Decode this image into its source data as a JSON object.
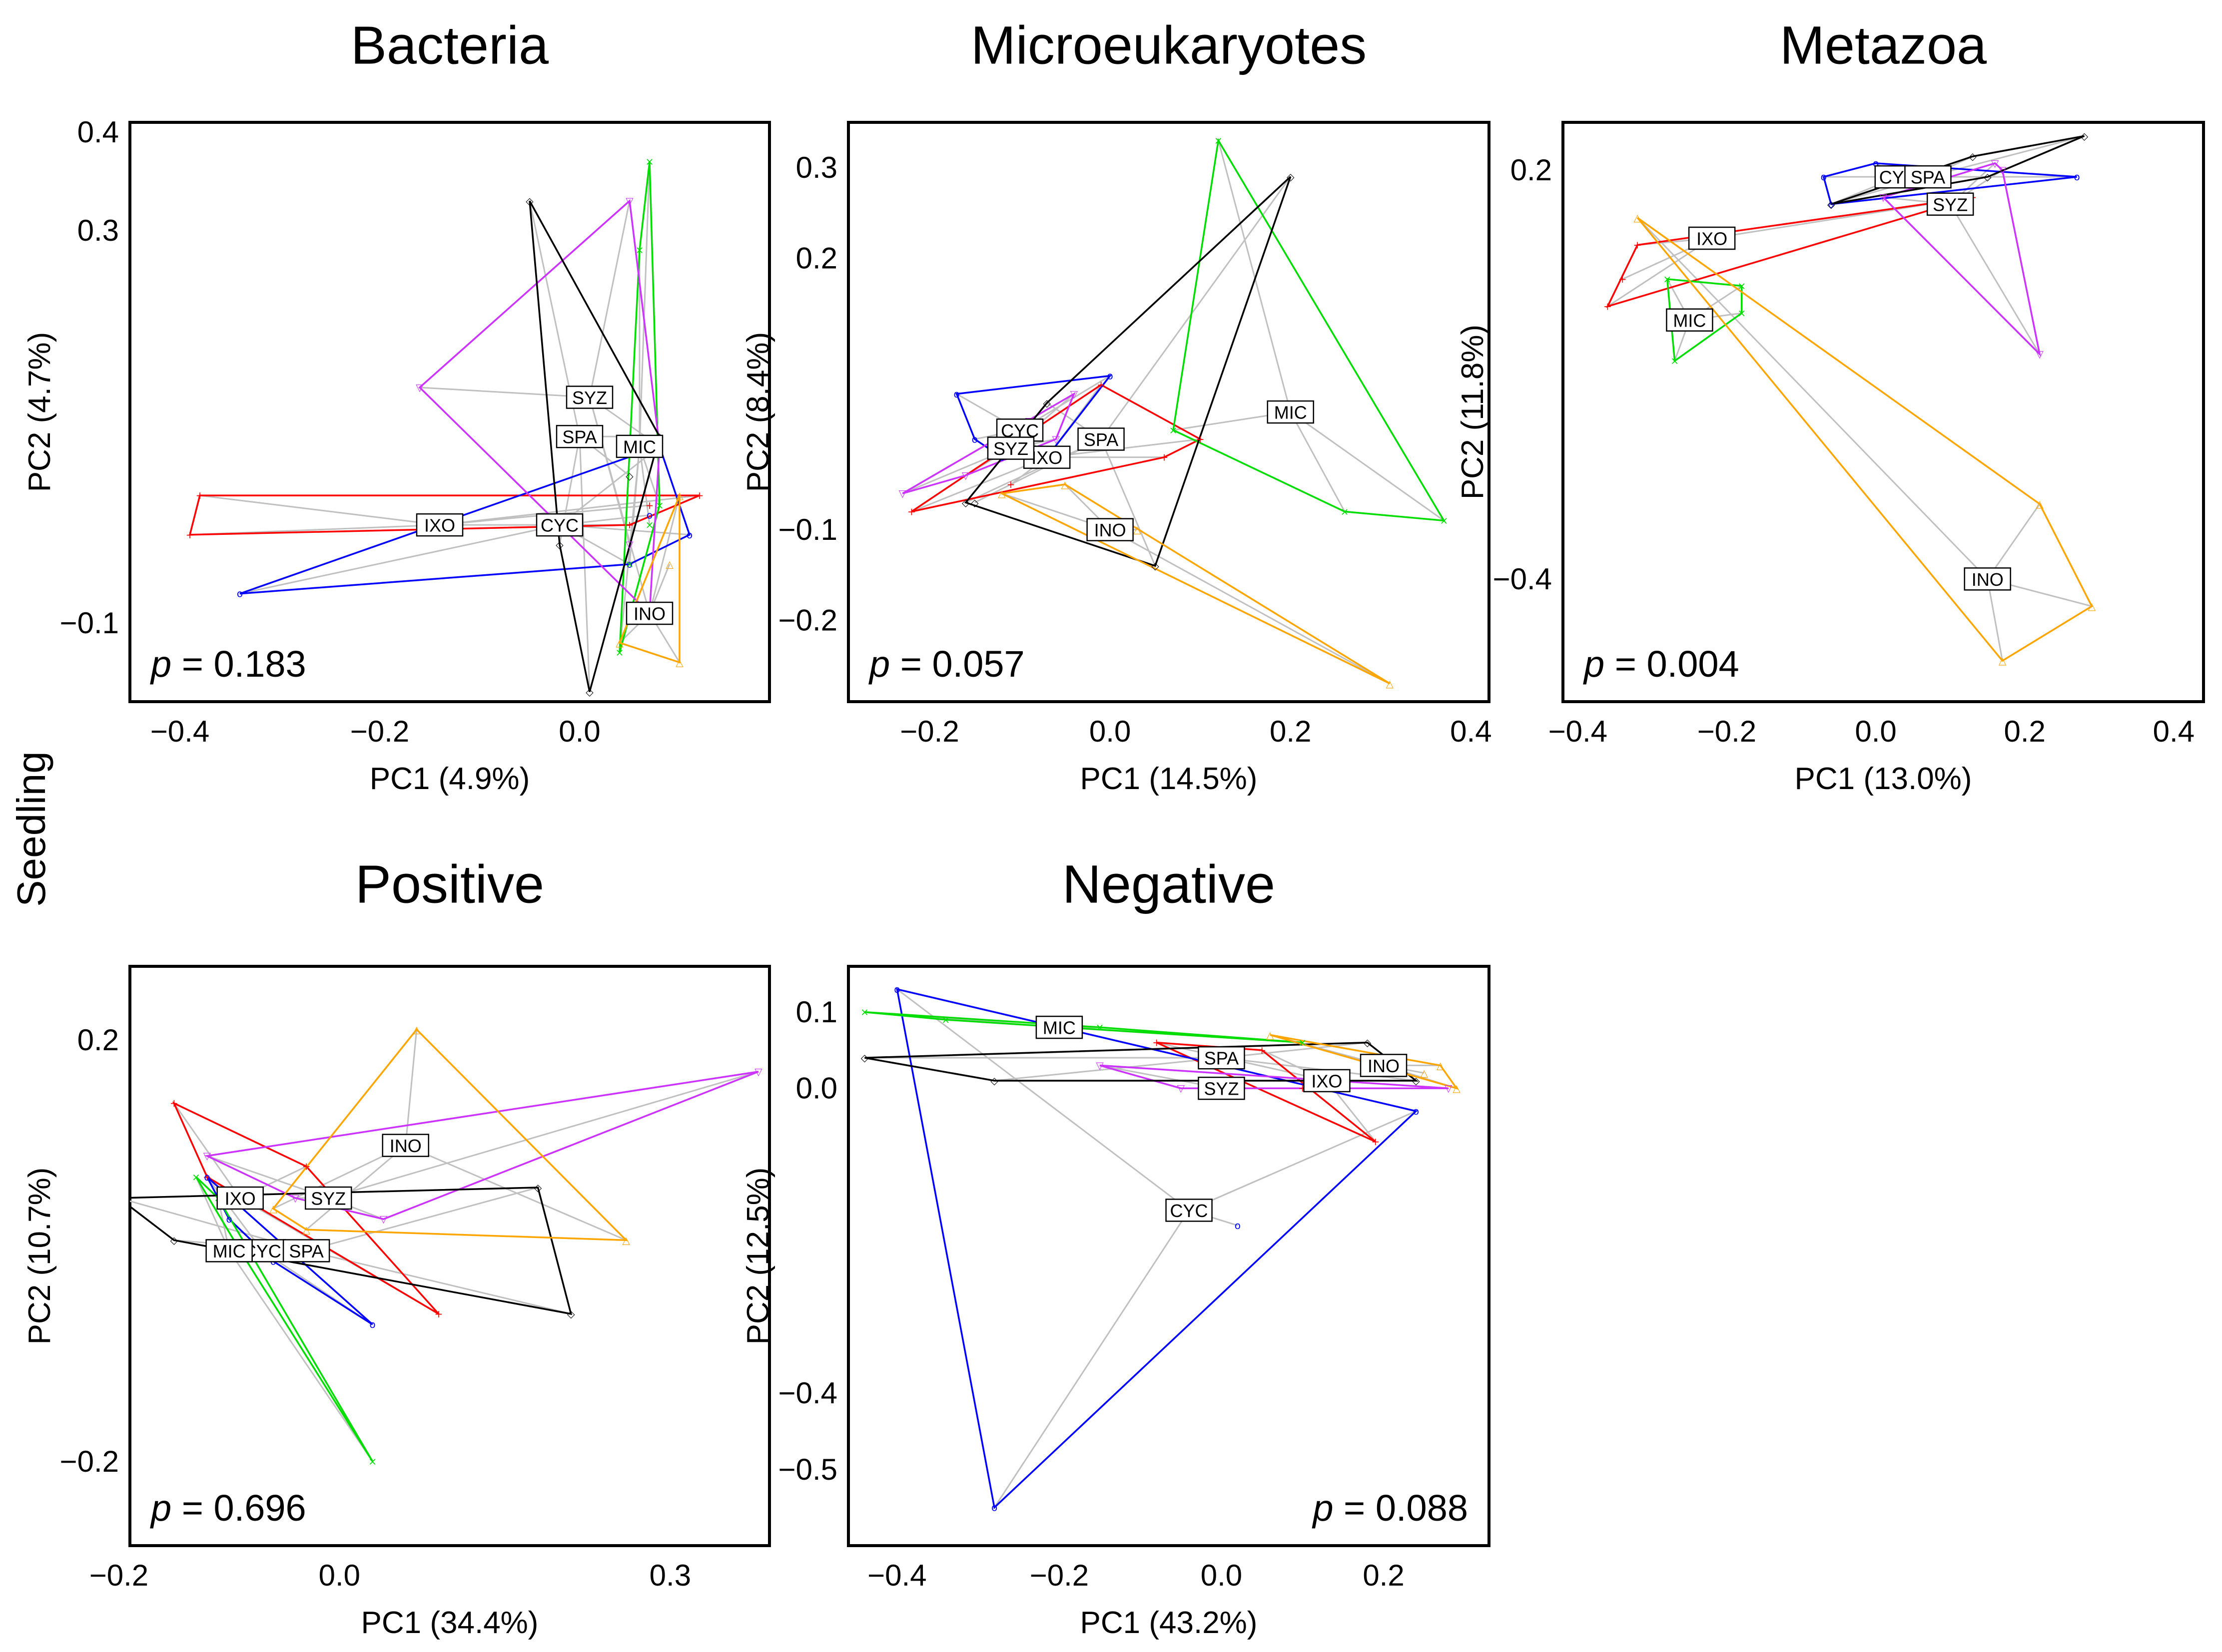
{
  "row_label": "Seedling",
  "colors": {
    "IXO": "#ff0000",
    "CYC": "#0000ff",
    "MIC": "#00dd00",
    "SYZ": "#cc33ff",
    "SPA": "#000000",
    "INO": "#ffa500",
    "spider": "#c0c0c0"
  },
  "chart_data": [
    {
      "type": "scatter",
      "title": "Bacteria",
      "xlabel": "PC1 (4.9%)",
      "ylabel": "PC2 (4.7%)",
      "p_label": "p",
      "p_value": "= 0.183",
      "p_position": "bottom-left",
      "xlim": [
        -0.45,
        0.19
      ],
      "ylim": [
        -0.18,
        0.41
      ],
      "xticks": [
        -0.4,
        -0.2,
        0.0
      ],
      "xtick_labels": [
        "−0.4",
        "−0.2",
        "0.0"
      ],
      "yticks": [
        0.4,
        0.3,
        -0.1
      ],
      "ytick_labels": [
        "0.4",
        "0.3",
        "−0.1"
      ],
      "groups": [
        {
          "name": "IXO",
          "label": "IXO",
          "centroid": [
            -0.14,
            0.0
          ],
          "points": [
            [
              -0.38,
              0.03
            ],
            [
              0.12,
              0.03
            ],
            [
              -0.39,
              -0.01
            ],
            [
              0.07,
              0.02
            ],
            [
              0.05,
              0.0
            ]
          ]
        },
        {
          "name": "CYC",
          "label": "CYC",
          "centroid": [
            -0.02,
            0.0
          ],
          "points": [
            [
              -0.34,
              -0.07
            ],
            [
              0.11,
              -0.01
            ],
            [
              0.08,
              0.08
            ],
            [
              0.07,
              0.01
            ],
            [
              0.05,
              -0.04
            ]
          ]
        },
        {
          "name": "MIC",
          "label": "MIC",
          "centroid": [
            0.06,
            0.08
          ],
          "points": [
            [
              0.07,
              0.37
            ],
            [
              0.06,
              0.28
            ],
            [
              0.05,
              -0.04
            ],
            [
              0.04,
              -0.13
            ],
            [
              0.07,
              0.0
            ],
            [
              0.08,
              0.02
            ]
          ]
        },
        {
          "name": "SYZ",
          "label": "SYZ",
          "centroid": [
            0.01,
            0.13
          ],
          "points": [
            [
              0.05,
              0.33
            ],
            [
              -0.16,
              0.14
            ],
            [
              0.08,
              0.08
            ],
            [
              0.07,
              -0.09
            ],
            [
              0.05,
              -0.02
            ]
          ]
        },
        {
          "name": "SPA",
          "label": "SPA",
          "centroid": [
            0.0,
            0.09
          ],
          "points": [
            [
              -0.05,
              0.33
            ],
            [
              0.08,
              0.09
            ],
            [
              0.01,
              -0.17
            ],
            [
              -0.02,
              -0.02
            ],
            [
              0.05,
              0.05
            ]
          ]
        },
        {
          "name": "INO",
          "label": "INO",
          "centroid": [
            0.07,
            -0.09
          ],
          "points": [
            [
              0.1,
              0.03
            ],
            [
              0.1,
              -0.14
            ],
            [
              0.04,
              -0.12
            ],
            [
              0.09,
              -0.04
            ]
          ]
        }
      ]
    },
    {
      "type": "scatter",
      "title": "Microeukaryotes",
      "xlabel": "PC1 (14.5%)",
      "ylabel": "PC2 (8.4%)",
      "p_label": "p",
      "p_value": "= 0.057",
      "p_position": "bottom-left",
      "xlim": [
        -0.29,
        0.42
      ],
      "ylim": [
        -0.29,
        0.35
      ],
      "xticks": [
        -0.2,
        0.0,
        0.2,
        0.4
      ],
      "xtick_labels": [
        "−0.2",
        "0.0",
        "0.2",
        "0.4"
      ],
      "yticks": [
        0.3,
        0.2,
        -0.1,
        -0.2
      ],
      "ytick_labels": [
        "0.3",
        "0.2",
        "−0.1",
        "−0.2"
      ],
      "groups": [
        {
          "name": "IXO",
          "label": "IXO",
          "centroid": [
            -0.07,
            -0.02
          ],
          "points": [
            [
              -0.22,
              -0.08
            ],
            [
              0.1,
              0.0
            ],
            [
              -0.01,
              0.06
            ],
            [
              -0.11,
              -0.05
            ],
            [
              0.06,
              -0.02
            ]
          ]
        },
        {
          "name": "CYC",
          "label": "CYC",
          "centroid": [
            -0.1,
            0.01
          ],
          "points": [
            [
              -0.17,
              0.05
            ],
            [
              0.0,
              0.07
            ],
            [
              -0.07,
              -0.02
            ],
            [
              -0.12,
              -0.02
            ],
            [
              -0.15,
              0.0
            ]
          ]
        },
        {
          "name": "MIC",
          "label": "MIC",
          "centroid": [
            0.2,
            0.03
          ],
          "points": [
            [
              0.12,
              0.33
            ],
            [
              0.07,
              0.01
            ],
            [
              0.26,
              -0.08
            ],
            [
              0.37,
              -0.09
            ]
          ]
        },
        {
          "name": "SYZ",
          "label": "SYZ",
          "centroid": [
            -0.11,
            -0.01
          ],
          "points": [
            [
              -0.23,
              -0.06
            ],
            [
              -0.04,
              0.05
            ],
            [
              -0.06,
              0.0
            ],
            [
              -0.16,
              -0.04
            ],
            [
              -0.09,
              0.02
            ]
          ]
        },
        {
          "name": "SPA",
          "label": "SPA",
          "centroid": [
            -0.01,
            0.0
          ],
          "points": [
            [
              -0.16,
              -0.07
            ],
            [
              0.2,
              0.29
            ],
            [
              0.05,
              -0.14
            ],
            [
              -0.07,
              0.04
            ],
            [
              -0.15,
              -0.07
            ]
          ]
        },
        {
          "name": "INO",
          "label": "INO",
          "centroid": [
            0.0,
            -0.1
          ],
          "points": [
            [
              -0.05,
              -0.05
            ],
            [
              0.31,
              -0.27
            ],
            [
              -0.12,
              -0.06
            ],
            [
              0.03,
              -0.1
            ]
          ]
        }
      ]
    },
    {
      "type": "scatter",
      "title": "Metazoa",
      "xlabel": "PC1 (13.0%)",
      "ylabel": "PC2 (11.8%)",
      "p_label": "p",
      "p_value": "= 0.004",
      "p_position": "bottom-left",
      "xlim": [
        -0.42,
        0.44
      ],
      "ylim": [
        -0.58,
        0.27
      ],
      "xticks": [
        -0.4,
        -0.2,
        0.0,
        0.2,
        0.4
      ],
      "xtick_labels": [
        "−0.4",
        "−0.2",
        "0.0",
        "0.2",
        "0.4"
      ],
      "yticks": [
        0.2,
        -0.4
      ],
      "ytick_labels": [
        "0.2",
        "−0.4"
      ],
      "groups": [
        {
          "name": "IXO",
          "label": "IXO",
          "centroid": [
            -0.22,
            0.1
          ],
          "points": [
            [
              -0.36,
              0.0
            ],
            [
              0.13,
              0.16
            ],
            [
              -0.32,
              0.09
            ],
            [
              -0.34,
              0.04
            ]
          ]
        },
        {
          "name": "CYC",
          "label": "CYC",
          "centroid": [
            0.03,
            0.19
          ],
          "points": [
            [
              -0.07,
              0.19
            ],
            [
              0.0,
              0.21
            ],
            [
              0.27,
              0.19
            ],
            [
              -0.06,
              0.15
            ]
          ]
        },
        {
          "name": "MIC",
          "label": "MIC",
          "centroid": [
            -0.25,
            -0.02
          ],
          "points": [
            [
              -0.28,
              0.04
            ],
            [
              -0.18,
              0.03
            ],
            [
              -0.18,
              -0.01
            ],
            [
              -0.27,
              -0.08
            ]
          ]
        },
        {
          "name": "SYZ",
          "label": "SYZ",
          "centroid": [
            0.1,
            0.15
          ],
          "points": [
            [
              0.16,
              0.21
            ],
            [
              0.01,
              0.16
            ],
            [
              0.22,
              -0.07
            ],
            [
              0.17,
              0.2
            ]
          ]
        },
        {
          "name": "SPA",
          "label": "SPA",
          "centroid": [
            0.07,
            0.19
          ],
          "points": [
            [
              0.13,
              0.22
            ],
            [
              0.28,
              0.25
            ],
            [
              -0.06,
              0.15
            ],
            [
              0.15,
              0.19
            ]
          ]
        },
        {
          "name": "INO",
          "label": "INO",
          "centroid": [
            0.15,
            -0.4
          ],
          "points": [
            [
              -0.32,
              0.13
            ],
            [
              0.22,
              -0.29
            ],
            [
              0.29,
              -0.44
            ],
            [
              0.17,
              -0.52
            ]
          ]
        }
      ]
    },
    {
      "type": "scatter",
      "title": "Positive",
      "xlabel": "PC1 (34.4%)",
      "ylabel": "PC2 (10.7%)",
      "p_label": "p",
      "p_value": "= 0.696",
      "p_position": "bottom-left",
      "xlim": [
        -0.19,
        0.39
      ],
      "ylim": [
        -0.28,
        0.27
      ],
      "xticks": [
        -0.2,
        0.0,
        0.3
      ],
      "xtick_labels": [
        "−0.2",
        "0.0",
        "0.3"
      ],
      "yticks": [
        0.2,
        -0.2
      ],
      "ytick_labels": [
        "0.2",
        "−0.2"
      ],
      "groups": [
        {
          "name": "IXO",
          "label": "IXO",
          "centroid": [
            -0.09,
            0.05
          ],
          "points": [
            [
              -0.15,
              0.14
            ],
            [
              -0.03,
              0.08
            ],
            [
              0.09,
              -0.06
            ],
            [
              -0.12,
              0.07
            ]
          ]
        },
        {
          "name": "CYC",
          "label": "CYC",
          "centroid": [
            -0.07,
            0.0
          ],
          "points": [
            [
              -0.12,
              0.07
            ],
            [
              0.03,
              -0.07
            ],
            [
              -0.1,
              0.03
            ],
            [
              -0.06,
              -0.01
            ]
          ]
        },
        {
          "name": "MIC",
          "label": "MIC",
          "centroid": [
            -0.1,
            0.0
          ],
          "points": [
            [
              -0.13,
              0.07
            ],
            [
              0.03,
              -0.2
            ],
            [
              -0.09,
              0.0
            ],
            [
              -0.11,
              0.05
            ]
          ]
        },
        {
          "name": "SYZ",
          "label": "SYZ",
          "centroid": [
            -0.01,
            0.05
          ],
          "points": [
            [
              -0.12,
              0.09
            ],
            [
              0.38,
              0.17
            ],
            [
              0.04,
              0.03
            ],
            [
              -0.04,
              0.05
            ]
          ]
        },
        {
          "name": "SPA",
          "label": "SPA",
          "centroid": [
            -0.03,
            0.0
          ],
          "points": [
            [
              -0.2,
              0.05
            ],
            [
              0.18,
              0.06
            ],
            [
              0.21,
              -0.06
            ],
            [
              -0.15,
              0.01
            ]
          ]
        },
        {
          "name": "INO",
          "label": "INO",
          "centroid": [
            0.06,
            0.1
          ],
          "points": [
            [
              0.07,
              0.21
            ],
            [
              0.26,
              0.01
            ],
            [
              -0.06,
              0.04
            ],
            [
              -0.03,
              0.02
            ]
          ]
        }
      ]
    },
    {
      "type": "scatter",
      "title": "Negative",
      "xlabel": "PC1 (43.2%)",
      "ylabel": "PC2 (12.5%)",
      "p_label": "p",
      "p_value": "= 0.088",
      "p_position": "bottom-right",
      "xlim": [
        -0.46,
        0.33
      ],
      "ylim": [
        -0.6,
        0.16
      ],
      "xticks": [
        -0.4,
        -0.2,
        0.0,
        0.2
      ],
      "xtick_labels": [
        "−0.4",
        "−0.2",
        "0.0",
        "0.2"
      ],
      "yticks": [
        0.1,
        0.0,
        -0.4,
        -0.5
      ],
      "ytick_labels": [
        "0.1",
        "0.0",
        "−0.4",
        "−0.5"
      ],
      "groups": [
        {
          "name": "IXO",
          "label": "IXO",
          "centroid": [
            0.13,
            0.01
          ],
          "points": [
            [
              -0.08,
              0.06
            ],
            [
              0.05,
              0.05
            ],
            [
              0.19,
              -0.07
            ],
            [
              0.1,
              0.0
            ]
          ]
        },
        {
          "name": "CYC",
          "label": "CYC",
          "centroid": [
            -0.04,
            -0.16
          ],
          "points": [
            [
              -0.4,
              0.13
            ],
            [
              0.24,
              -0.03
            ],
            [
              -0.28,
              -0.55
            ],
            [
              0.02,
              -0.18
            ]
          ]
        },
        {
          "name": "MIC",
          "label": "MIC",
          "centroid": [
            -0.2,
            0.08
          ],
          "points": [
            [
              -0.44,
              0.1
            ],
            [
              -0.34,
              0.09
            ],
            [
              -0.15,
              0.08
            ],
            [
              0.1,
              0.06
            ]
          ]
        },
        {
          "name": "SYZ",
          "label": "SYZ",
          "centroid": [
            0.0,
            0.0
          ],
          "points": [
            [
              -0.15,
              0.03
            ],
            [
              0.28,
              0.0
            ],
            [
              0.0,
              0.0
            ],
            [
              -0.05,
              0.0
            ]
          ]
        },
        {
          "name": "SPA",
          "label": "SPA",
          "centroid": [
            0.0,
            0.04
          ],
          "points": [
            [
              -0.44,
              0.04
            ],
            [
              0.18,
              0.06
            ],
            [
              0.24,
              0.01
            ],
            [
              -0.28,
              0.01
            ]
          ]
        },
        {
          "name": "INO",
          "label": "INO",
          "centroid": [
            0.2,
            0.03
          ],
          "points": [
            [
              0.06,
              0.07
            ],
            [
              0.27,
              0.03
            ],
            [
              0.29,
              0.0
            ],
            [
              0.25,
              0.02
            ]
          ]
        }
      ]
    }
  ]
}
